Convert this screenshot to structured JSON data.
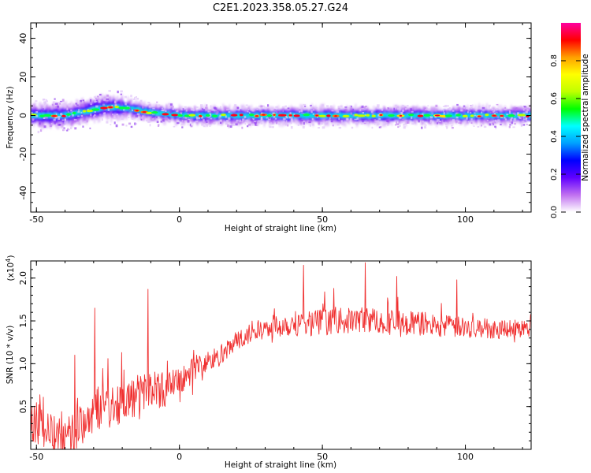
{
  "figure": {
    "title": "C2E1.2023.358.05.27.G24"
  },
  "chart_data": [
    {
      "type": "heatmap",
      "xlabel": "Height of straight line (km)",
      "ylabel": "Frequency (Hz)",
      "xlim": [
        -52,
        123
      ],
      "ylim": [
        -50,
        48
      ],
      "xticks": [
        -50,
        0,
        50,
        100
      ],
      "yticks": [
        -40,
        -20,
        0,
        20,
        40
      ],
      "colorbar": {
        "label": "Normalized spectral amplitude",
        "range": [
          0,
          1
        ],
        "ticks": [
          0.0,
          0.2,
          0.4,
          0.6,
          0.8
        ],
        "colormap": "rainbow",
        "color_stops": [
          "#ffffff",
          "#c070f0",
          "#6000ff",
          "#0000ff",
          "#00a0ff",
          "#00ffff",
          "#00ff00",
          "#c0ff00",
          "#ffff00",
          "#ffa000",
          "#ff0000",
          "#ff00a0"
        ]
      },
      "ridge": {
        "description": "signal band centered near 0 Hz",
        "x": [
          -52,
          -45,
          -40,
          -35,
          -30,
          -25,
          -20,
          -15,
          -10,
          -5,
          0,
          20,
          50,
          80,
          123
        ],
        "center_hz": [
          0,
          0,
          0,
          1.5,
          3,
          4.5,
          4,
          3,
          1.5,
          1,
          0,
          0,
          0,
          0,
          0
        ]
      }
    },
    {
      "type": "line",
      "xlabel": "Height of straight line (km)",
      "ylabel": "SNR (10 * v/v)",
      "y_multiplier": "(x10",
      "y_multiplier_exp": "4",
      "y_multiplier_close": ")",
      "xlim": [
        -52,
        123
      ],
      "ylim": [
        0.0,
        2.2
      ],
      "xticks": [
        -50,
        0,
        50,
        100
      ],
      "yticks": [
        0.5,
        1.0,
        1.5,
        2.0
      ],
      "color": "#f03030",
      "series": [
        {
          "x": [
            -52,
            -45,
            -40,
            -35,
            -30,
            -25,
            -20,
            -15,
            -10,
            -5,
            0,
            5,
            10,
            15,
            20,
            25,
            30,
            35,
            40,
            45,
            50,
            55,
            60,
            65,
            70,
            75,
            80,
            85,
            90,
            95,
            100,
            105,
            110,
            115,
            120,
            123
          ],
          "values": [
            0.35,
            0.2,
            0.12,
            0.25,
            0.45,
            0.52,
            0.55,
            0.62,
            0.72,
            0.7,
            0.78,
            0.95,
            1.02,
            1.1,
            1.25,
            1.35,
            1.42,
            1.45,
            1.47,
            1.48,
            1.49,
            1.5,
            1.5,
            1.52,
            1.5,
            1.48,
            1.47,
            1.47,
            1.45,
            1.43,
            1.42,
            1.42,
            1.41,
            1.42,
            1.41,
            1.4
          ],
          "noise_amplitude": [
            0.25,
            0.22,
            0.22,
            0.25,
            0.25,
            0.25,
            0.25,
            0.25,
            0.22,
            0.2,
            0.18,
            0.16,
            0.14,
            0.12,
            0.12,
            0.12,
            0.12,
            0.14,
            0.15,
            0.15,
            0.15,
            0.15,
            0.15,
            0.15,
            0.15,
            0.15,
            0.15,
            0.14,
            0.14,
            0.13,
            0.12,
            0.12,
            0.12,
            0.11,
            0.11,
            0.11
          ],
          "spikes": [
            {
              "x": -29.5,
              "y": 1.65
            },
            {
              "x": -36.5,
              "y": 1.1
            },
            {
              "x": -11,
              "y": 1.87
            },
            {
              "x": 43.5,
              "y": 2.15
            },
            {
              "x": 65,
              "y": 2.18
            },
            {
              "x": 76,
              "y": 2.02
            },
            {
              "x": 97,
              "y": 1.98
            },
            {
              "x": 54,
              "y": 1.88
            }
          ]
        }
      ]
    }
  ]
}
